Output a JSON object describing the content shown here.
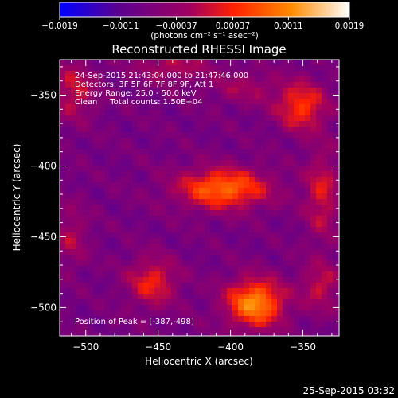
{
  "chart_data": {
    "type": "heatmap",
    "title": "Reconstructed RHESSI Image",
    "xlabel": "Heliocentric X (arcsec)",
    "ylabel": "Heliocentric Y (arcsec)",
    "xlim": [
      -518,
      -325
    ],
    "ylim": [
      -520,
      -325
    ],
    "x_ticks": [
      -500,
      -450,
      -400,
      -350
    ],
    "y_ticks": [
      -350,
      -400,
      -450,
      -500
    ],
    "x_tick_labels": [
      "−500",
      "−450",
      "−400",
      "−350"
    ],
    "y_tick_labels": [
      "−350",
      "−400",
      "−450",
      "−500"
    ],
    "colorbar": {
      "min": -0.0019,
      "max": 0.0019,
      "ticks": [
        -0.0019,
        -0.0011,
        -0.00037,
        0.00037,
        0.0011,
        0.0019
      ],
      "tick_labels": [
        "−0.0019",
        "−0.0011",
        "−0.00037",
        "0.00037",
        "0.0011",
        "0.0019"
      ],
      "unit_label": "(photons cm⁻² s⁻¹ asec⁻²)",
      "colors": [
        "#0000ff",
        "#5a0090",
        "#a00060",
        "#ff2000",
        "#ff8c00",
        "#ffffff"
      ]
    },
    "annotations": [
      "24-Sep-2015 21:43:04.000 to 21:47:46.000",
      "Detectors: 3F 5F 6F 7F 8F 9F, Att 1",
      "Energy Range: 25.0 - 50.0 keV",
      "Clean     Total counts: 1.50E+04"
    ],
    "peak_label": "Position of Peak = [-387,-498]",
    "peak": {
      "x": -387,
      "y": -498
    },
    "sources": [
      {
        "x": -383,
        "y": -497,
        "sx": 14,
        "sy": 12,
        "amp": 0.0019
      },
      {
        "x": -405,
        "y": -416,
        "sx": 22,
        "sy": 10,
        "amp": 0.00165
      },
      {
        "x": -351,
        "y": -358,
        "sx": 12,
        "sy": 12,
        "amp": 0.00125
      },
      {
        "x": -454,
        "y": -482,
        "sx": 12,
        "sy": 12,
        "amp": 0.00105
      },
      {
        "x": -508,
        "y": -347,
        "sx": 10,
        "sy": 14,
        "amp": 0.00085
      },
      {
        "x": -337,
        "y": -420,
        "sx": 8,
        "sy": 22,
        "amp": 0.0009
      },
      {
        "x": -338,
        "y": -485,
        "sx": 9,
        "sy": 12,
        "amp": 0.0008
      },
      {
        "x": -510,
        "y": -450,
        "sx": 8,
        "sy": 15,
        "amp": 0.0006
      },
      {
        "x": -440,
        "y": -330,
        "sx": 18,
        "sy": 8,
        "amp": 0.0007
      },
      {
        "x": -390,
        "y": -345,
        "sx": 16,
        "sy": 8,
        "amp": 0.00055
      }
    ],
    "background": -0.00075
  },
  "timestamp": "25-Sep-2015 03:32"
}
